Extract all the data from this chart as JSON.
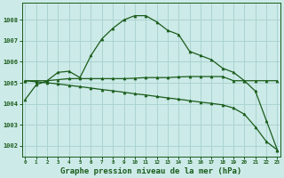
{
  "bg_color": "#cceae8",
  "grid_color": "#aad4d0",
  "line_color": "#1a5c1a",
  "marker_color": "#1a5c1a",
  "title": "Graphe pression niveau de la mer (hPa)",
  "title_fontsize": 6.5,
  "xlabel_ticks": [
    0,
    1,
    2,
    3,
    4,
    5,
    6,
    7,
    8,
    9,
    10,
    11,
    12,
    13,
    14,
    15,
    16,
    17,
    18,
    19,
    20,
    21,
    22,
    23
  ],
  "ylim": [
    1001.5,
    1008.8
  ],
  "xlim": [
    -0.3,
    23.3
  ],
  "yticks": [
    1002,
    1003,
    1004,
    1005,
    1006,
    1007,
    1008
  ],
  "line1": [
    1004.2,
    1004.9,
    1005.1,
    1005.5,
    1005.55,
    1005.25,
    1006.3,
    1007.1,
    1007.6,
    1008.0,
    1008.2,
    1008.2,
    1007.9,
    1007.5,
    1007.3,
    1006.5,
    1006.3,
    1006.1,
    1005.7,
    1005.5,
    1005.1,
    1004.6,
    1003.2,
    1001.8
  ],
  "line2": [
    1005.1,
    1005.1,
    1005.1,
    1005.15,
    1005.2,
    1005.2,
    1005.2,
    1005.2,
    1005.2,
    1005.2,
    1005.22,
    1005.25,
    1005.25,
    1005.25,
    1005.28,
    1005.3,
    1005.3,
    1005.3,
    1005.3,
    1005.1,
    1005.1,
    1005.1,
    1005.1,
    1005.1
  ],
  "line3": [
    1005.1,
    1005.05,
    1005.0,
    1004.95,
    1004.88,
    1004.82,
    1004.75,
    1004.68,
    1004.62,
    1004.55,
    1004.48,
    1004.42,
    1004.35,
    1004.28,
    1004.22,
    1004.15,
    1004.08,
    1004.02,
    1003.95,
    1003.8,
    1003.5,
    1002.9,
    1002.2,
    1001.8
  ]
}
